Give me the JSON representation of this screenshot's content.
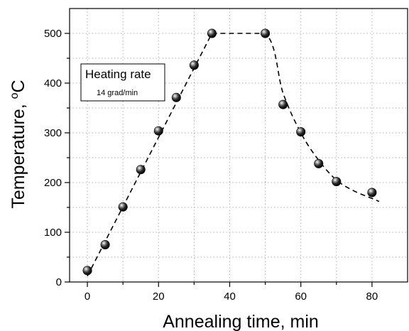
{
  "chart_data": {
    "type": "scatter",
    "xlabel": "Annealing time, min",
    "ylabel": "Temperature, ",
    "ylabel_unit": "oC",
    "xlim": [
      -5,
      90
    ],
    "ylim": [
      0,
      550
    ],
    "x_ticks": [
      0,
      20,
      40,
      60,
      80
    ],
    "y_ticks": [
      0,
      100,
      200,
      300,
      400,
      500
    ],
    "grid": true,
    "grid_style": "dotted",
    "legend": null,
    "annotation": {
      "title": "Heating rate",
      "subtitle": "14 grad/min"
    },
    "series": [
      {
        "marker": "sphere",
        "color": "#000000",
        "x": [
          0,
          5,
          10,
          15,
          20,
          25,
          30,
          35,
          50,
          55,
          60,
          65,
          70,
          80
        ],
        "y": [
          23,
          75,
          151,
          226,
          304,
          371,
          436,
          500,
          500,
          357,
          302,
          238,
          202,
          180
        ]
      }
    ],
    "trend_line": {
      "style": "dashed",
      "color": "#000000",
      "x": [
        0,
        35,
        50,
        55,
        60,
        65,
        70,
        75,
        80,
        82
      ],
      "y": [
        12,
        500,
        500,
        380,
        300,
        245,
        205,
        183,
        168,
        162
      ]
    }
  }
}
